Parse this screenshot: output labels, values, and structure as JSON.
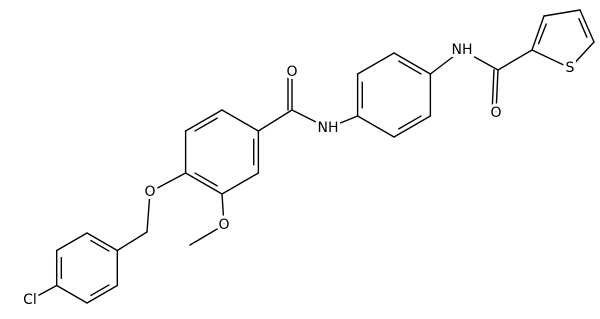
{
  "atoms": [
    "Cl",
    "O",
    "O",
    "O",
    "NH",
    "O",
    "NH",
    "S"
  ]
}
